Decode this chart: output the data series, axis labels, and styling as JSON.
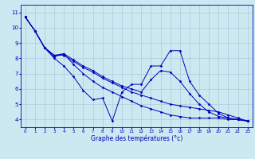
{
  "xlabel": "Graphe des températures (°c)",
  "xlim": [
    -0.5,
    23.5
  ],
  "ylim": [
    3.5,
    11.5
  ],
  "yticks": [
    4,
    5,
    6,
    7,
    8,
    9,
    10,
    11
  ],
  "xticks": [
    0,
    1,
    2,
    3,
    4,
    5,
    6,
    7,
    8,
    9,
    10,
    11,
    12,
    13,
    14,
    15,
    16,
    17,
    18,
    19,
    20,
    21,
    22,
    23
  ],
  "background_color": "#cce8f0",
  "line_color": "#0000bb",
  "grid_color": "#aaccdd",
  "series": [
    [
      10.7,
      9.8,
      8.7,
      8.0,
      7.5,
      6.8,
      5.9,
      5.3,
      5.4,
      3.9,
      5.8,
      6.3,
      6.3,
      7.5,
      7.5,
      8.5,
      8.5,
      6.5,
      5.6,
      5.0,
      4.4,
      4.1,
      4.0,
      3.9
    ],
    [
      10.7,
      9.8,
      8.7,
      8.1,
      8.3,
      7.6,
      7.0,
      6.5,
      6.1,
      5.8,
      5.5,
      5.2,
      4.9,
      4.7,
      4.5,
      4.3,
      4.2,
      4.1,
      4.1,
      4.1,
      4.1,
      4.0,
      4.0,
      3.9
    ],
    [
      10.7,
      9.8,
      8.7,
      8.2,
      8.2,
      7.8,
      7.4,
      7.1,
      6.7,
      6.4,
      6.1,
      5.8,
      5.6,
      5.4,
      5.2,
      5.0,
      4.9,
      4.8,
      4.7,
      4.6,
      4.5,
      4.3,
      4.1,
      3.9
    ],
    [
      10.7,
      9.8,
      8.7,
      8.2,
      8.3,
      7.9,
      7.5,
      7.2,
      6.8,
      6.5,
      6.2,
      6.0,
      5.8,
      6.6,
      7.2,
      7.1,
      6.5,
      5.7,
      5.0,
      4.5,
      4.2,
      4.1,
      4.0,
      3.9
    ]
  ]
}
